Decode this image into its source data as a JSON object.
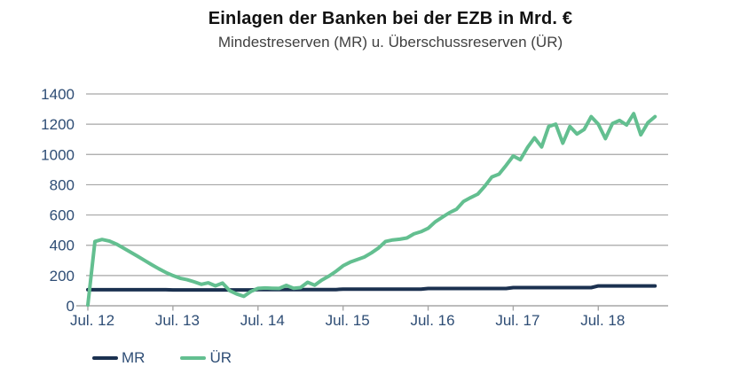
{
  "chart_data": {
    "type": "line",
    "title": "Einlagen der Banken bei der EZB in Mrd. €",
    "subtitle": "Mindestreserven (MR) u. Überschussreserven (ÜR)",
    "x_axis": {
      "tick_labels": [
        "Jul. 12",
        "Jul. 13",
        "Jul. 14",
        "Jul. 15",
        "Jul. 16",
        "Jul. 17",
        "Jul. 18"
      ],
      "unit": "month",
      "first_point": "Jul 2012"
    },
    "y_axis": {
      "ticks": [
        0,
        200,
        400,
        600,
        800,
        1000,
        1200,
        1400
      ],
      "lim": [
        0,
        1400
      ]
    },
    "grid": true,
    "legend_position": "bottom-left",
    "colors": {
      "grid": "#a6a6a6",
      "axis_labels": "#2e4d75"
    },
    "series": [
      {
        "id": "mr",
        "name": "MR",
        "color": "#1b3150",
        "values": [
          106,
          106,
          106,
          106,
          106,
          106,
          106,
          106,
          106,
          106,
          106,
          106,
          105,
          105,
          105,
          105,
          105,
          105,
          105,
          105,
          105,
          105,
          105,
          105,
          107,
          107,
          107,
          107,
          107,
          107,
          107,
          107,
          107,
          107,
          107,
          107,
          110,
          110,
          110,
          110,
          110,
          110,
          110,
          110,
          110,
          110,
          110,
          110,
          114,
          114,
          114,
          114,
          114,
          114,
          114,
          114,
          114,
          114,
          114,
          114,
          120,
          120,
          120,
          120,
          120,
          120,
          120,
          120,
          120,
          120,
          120,
          120,
          131,
          131,
          131,
          131,
          131,
          131,
          131,
          131,
          131
        ]
      },
      {
        "id": "ur",
        "name": "ÜR",
        "color": "#63bf90",
        "values": [
          5,
          425,
          438,
          428,
          408,
          382,
          355,
          328,
          300,
          272,
          245,
          220,
          200,
          182,
          172,
          158,
          142,
          152,
          132,
          150,
          100,
          78,
          62,
          95,
          115,
          118,
          116,
          115,
          135,
          116,
          120,
          155,
          136,
          170,
          196,
          228,
          264,
          288,
          305,
          322,
          350,
          382,
          425,
          435,
          440,
          448,
          475,
          490,
          512,
          555,
          585,
          615,
          638,
          690,
          715,
          738,
          790,
          852,
          870,
          928,
          990,
          965,
          1045,
          1110,
          1050,
          1185,
          1200,
          1075,
          1185,
          1135,
          1165,
          1250,
          1200,
          1105,
          1205,
          1225,
          1195,
          1270,
          1130,
          1210,
          1250
        ]
      }
    ]
  }
}
